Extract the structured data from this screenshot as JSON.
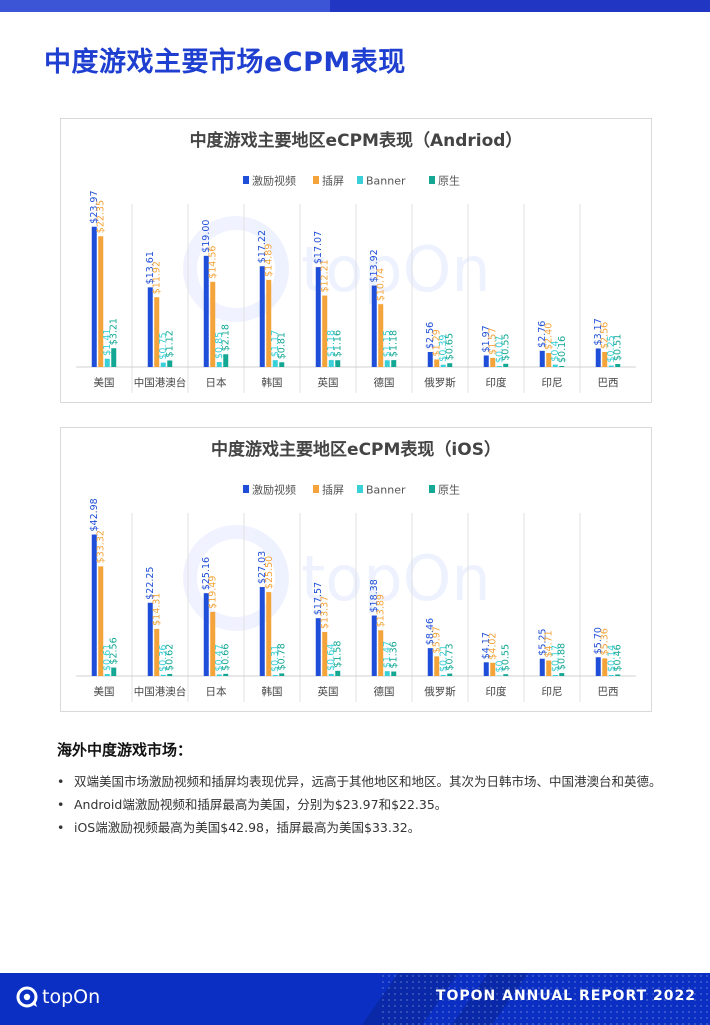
{
  "page": {
    "title": "中度游戏主要市场eCPM表现",
    "section_heading": "海外中度游戏市场：",
    "bullets": [
      "双端美国市场激励视频和插屏均表现优异，远高于其他地区和地区。其次为日韩市场、中国港澳台和英德。",
      "Android端激励视频和插屏最高为美国，分别为$23.97和$22.35。",
      "iOS端激励视频最高为美国$42.98，插屏最高为美国$33.32。"
    ],
    "bullet_symbol": "•",
    "footer_logo": "topOn",
    "footer_text": "TOPON ANNUAL REPORT 2022",
    "watermark": "topOn"
  },
  "colors": {
    "title_blue": "#1f3fd0",
    "series": [
      "#1f4fd8",
      "#f4a43a",
      "#39d0d8",
      "#14a894"
    ]
  },
  "chart_data": [
    {
      "type": "bar",
      "title": "中度游戏主要地区eCPM表现（Andriod）",
      "categories": [
        "美国",
        "中国港澳台",
        "日本",
        "韩国",
        "英国",
        "德国",
        "俄罗斯",
        "印度",
        "印尼",
        "巴西"
      ],
      "series": [
        {
          "name": "激励视频",
          "values": [
            23.97,
            13.61,
            19.0,
            17.22,
            17.07,
            13.92,
            2.56,
            1.97,
            2.76,
            3.17
          ],
          "labels": [
            "$23.97",
            "$13.61",
            "$19.00",
            "$17.22",
            "$17.07",
            "$13.92",
            "$2.56",
            "$1.97",
            "$2.76",
            "$3.17"
          ]
        },
        {
          "name": "插屏",
          "values": [
            22.35,
            11.92,
            14.56,
            14.89,
            12.21,
            10.74,
            1.29,
            1.57,
            2.4,
            2.56
          ],
          "labels": [
            "$22.35",
            "$11.92",
            "$14.56",
            "$14.89",
            "$12.21",
            "$10.74",
            "$1.29",
            "$1.57",
            "$2.40",
            "$2.56"
          ]
        },
        {
          "name": "Banner",
          "values": [
            1.41,
            0.75,
            0.85,
            1.17,
            1.18,
            1.15,
            0.39,
            0.07,
            0.4,
            0.25
          ],
          "labels": [
            "$1.41",
            "$0.75",
            "$0.85",
            "$1.17",
            "$1.18",
            "$1.15",
            "$0.39",
            "$0.07",
            "$0.4",
            "$0.25"
          ]
        },
        {
          "name": "原生",
          "values": [
            3.21,
            1.12,
            2.18,
            0.81,
            1.16,
            1.18,
            0.65,
            0.55,
            0.16,
            0.51
          ],
          "labels": [
            "$3.21",
            "$1.12",
            "$2.18",
            "$0.81",
            "$1.16",
            "$1.18",
            "$0.65",
            "$0.55",
            "$0.16",
            "$0.51"
          ]
        }
      ],
      "ylim": [
        0,
        27
      ],
      "legend": "top",
      "grid": false
    },
    {
      "type": "bar",
      "title": "中度游戏主要地区eCPM表现（iOS）",
      "categories": [
        "美国",
        "中国港澳台",
        "日本",
        "韩国",
        "英国",
        "德国",
        "俄罗斯",
        "印度",
        "印尼",
        "巴西"
      ],
      "series": [
        {
          "name": "激励视频",
          "values": [
            42.98,
            22.25,
            25.16,
            27.03,
            17.57,
            18.38,
            8.46,
            4.17,
            5.25,
            5.7
          ],
          "labels": [
            "$42.98",
            "$22.25",
            "$25.16",
            "$27.03",
            "$17.57",
            "$18.38",
            "$8.46",
            "$4.17",
            "$5.25",
            "$5.70"
          ]
        },
        {
          "name": "插屏",
          "values": [
            33.32,
            14.31,
            19.49,
            25.5,
            13.37,
            13.89,
            5.97,
            4.02,
            4.71,
            5.36
          ],
          "labels": [
            "$33.32",
            "$14.31",
            "$19.49",
            "$25.50",
            "$13.37",
            "$13.89",
            "$5.97",
            "$4.02",
            "$4.71",
            "$5.36"
          ]
        },
        {
          "name": "Banner",
          "values": [
            0.61,
            0.36,
            0.47,
            0.31,
            0.64,
            1.47,
            0.21,
            0,
            0.17,
            0.14
          ],
          "labels": [
            "$0.61",
            "$0.36",
            "$0.47",
            "$0.31",
            "$0.64",
            "$1.47",
            "$0.21",
            "$0",
            "$0.17",
            "$0.14"
          ]
        },
        {
          "name": "原生",
          "values": [
            2.56,
            0.62,
            0.66,
            0.78,
            1.58,
            1.36,
            0.73,
            0.55,
            0.88,
            0.46
          ],
          "labels": [
            "$2.56",
            "$0.62",
            "$0.66",
            "$0.78",
            "$1.58",
            "$1.36",
            "$0.73",
            "$0.55",
            "$0.88",
            "$0.46"
          ]
        }
      ],
      "ylim": [
        0,
        48
      ],
      "legend": "top",
      "grid": false
    }
  ]
}
